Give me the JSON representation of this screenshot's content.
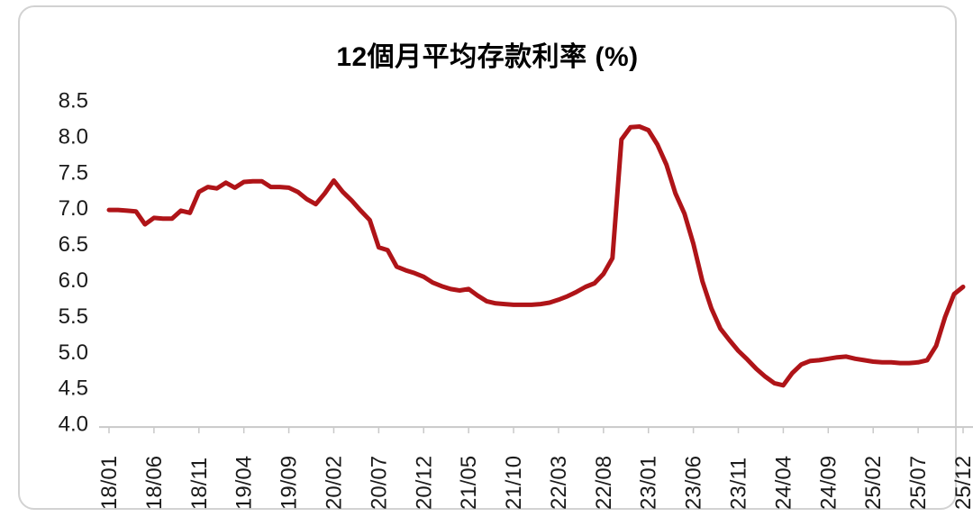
{
  "chart_data": {
    "type": "line",
    "title": "12個月平均存款利率 (%)",
    "xlabel": "",
    "ylabel": "",
    "ylim": [
      4.0,
      8.5
    ],
    "grid": false,
    "legend": "none",
    "line_color": "#AF1418",
    "axis_color": "#c9c9c9",
    "tick_label_color": "#1a1a1a",
    "y_tick_labels": [
      "8.5",
      "8.0",
      "7.5",
      "7.0",
      "6.5",
      "6.0",
      "5.5",
      "5.0",
      "4.5",
      "4.0"
    ],
    "x_tick_every": 5,
    "x_tick_labels": [
      "18/01",
      "18/06",
      "18/11",
      "19/04",
      "19/09",
      "20/02",
      "20/07",
      "20/12",
      "21/05",
      "21/10",
      "22/03",
      "22/08",
      "23/01",
      "23/06",
      "23/11",
      "24/04",
      "24/09",
      "25/02",
      "25/07",
      "25/12"
    ],
    "categories": [
      "18/01",
      "18/02",
      "18/03",
      "18/04",
      "18/05",
      "18/06",
      "18/07",
      "18/08",
      "18/09",
      "18/10",
      "18/11",
      "18/12",
      "19/01",
      "19/02",
      "19/03",
      "19/04",
      "19/05",
      "19/06",
      "19/07",
      "19/08",
      "19/09",
      "19/10",
      "19/11",
      "19/12",
      "20/01",
      "20/02",
      "20/03",
      "20/04",
      "20/05",
      "20/06",
      "20/07",
      "20/08",
      "20/09",
      "20/10",
      "20/11",
      "20/12",
      "21/01",
      "21/02",
      "21/03",
      "21/04",
      "21/05",
      "21/06",
      "21/07",
      "21/08",
      "21/09",
      "21/10",
      "21/11",
      "21/12",
      "22/01",
      "22/02",
      "22/03",
      "22/04",
      "22/05",
      "22/06",
      "22/07",
      "22/08",
      "22/09",
      "22/10",
      "22/11",
      "22/12",
      "23/01",
      "23/02",
      "23/03",
      "23/04",
      "23/05",
      "23/06",
      "23/07",
      "23/08",
      "23/09",
      "23/10",
      "23/11",
      "23/12",
      "24/01",
      "24/02",
      "24/03",
      "24/04",
      "24/05",
      "24/06",
      "24/07",
      "24/08",
      "24/09",
      "24/10",
      "24/11",
      "24/12",
      "25/01",
      "25/02",
      "25/03",
      "25/04",
      "25/05",
      "25/06",
      "25/07",
      "25/08",
      "25/09",
      "25/10",
      "25/11",
      "25/12"
    ],
    "series": [
      {
        "name": "12個月平均存款利率",
        "values": [
          6.97,
          6.97,
          6.96,
          6.95,
          6.77,
          6.86,
          6.85,
          6.85,
          6.96,
          6.93,
          7.22,
          7.29,
          7.27,
          7.35,
          7.28,
          7.36,
          7.37,
          7.37,
          7.29,
          7.29,
          7.28,
          7.22,
          7.12,
          7.05,
          7.2,
          7.38,
          7.22,
          7.1,
          6.96,
          6.83,
          6.45,
          6.41,
          6.18,
          6.13,
          6.09,
          6.04,
          5.96,
          5.91,
          5.87,
          5.85,
          5.87,
          5.78,
          5.7,
          5.67,
          5.66,
          5.65,
          5.65,
          5.65,
          5.66,
          5.68,
          5.72,
          5.77,
          5.83,
          5.9,
          5.95,
          6.08,
          6.3,
          7.95,
          8.12,
          8.13,
          8.08,
          7.88,
          7.6,
          7.2,
          6.92,
          6.5,
          5.98,
          5.6,
          5.32,
          5.16,
          5.01,
          4.89,
          4.76,
          4.65,
          4.56,
          4.53,
          4.7,
          4.82,
          4.87,
          4.88,
          4.9,
          4.92,
          4.93,
          4.9,
          4.88,
          4.86,
          4.85,
          4.85,
          4.84,
          4.84,
          4.85,
          4.88,
          5.08,
          5.48,
          5.8,
          5.9
        ]
      }
    ]
  }
}
